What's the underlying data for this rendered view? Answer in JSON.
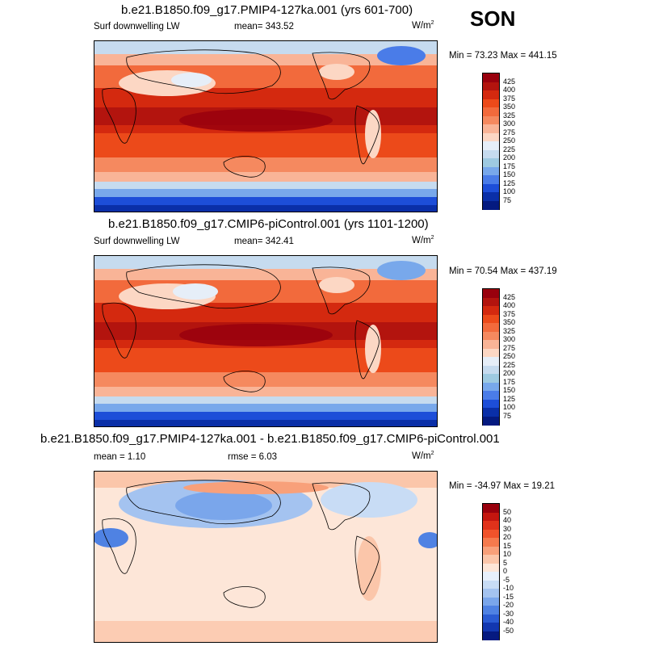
{
  "season": "SON",
  "units_base": "W/m",
  "units_exp": "2",
  "panels": [
    {
      "title": "b.e21.B1850.f09_g17.PMIP4-127ka.001 (yrs 601-700)",
      "variable": "Surf downwelling LW",
      "stat": "mean= 343.52",
      "minmax": "Min =  73.23 Max = 441.15",
      "legend": {
        "colorbar": "absolute",
        "levels": [
          "425",
          "400",
          "375",
          "350",
          "325",
          "300",
          "275",
          "250",
          "225",
          "200",
          "175",
          "150",
          "125",
          "100",
          "75"
        ],
        "colors": [
          "#99000d",
          "#b3140e",
          "#d4290f",
          "#ec4a1a",
          "#f26a3c",
          "#f5895f",
          "#f9b497",
          "#fcd7c4",
          "#e6eef8",
          "#c6dbef",
          "#9ecae1",
          "#78a8eb",
          "#4a7ce8",
          "#1d4ed8",
          "#0a2fa8",
          "#041a80"
        ]
      }
    },
    {
      "title": "b.e21.B1850.f09_g17.CMIP6-piControl.001 (yrs 1101-1200)",
      "variable": "Surf downwelling LW",
      "stat": "mean= 342.41",
      "minmax": "Min =  70.54 Max = 437.19",
      "legend": {
        "colorbar": "absolute",
        "levels": [
          "425",
          "400",
          "375",
          "350",
          "325",
          "300",
          "275",
          "250",
          "225",
          "200",
          "175",
          "150",
          "125",
          "100",
          "75"
        ],
        "colors": [
          "#99000d",
          "#b3140e",
          "#d4290f",
          "#ec4a1a",
          "#f26a3c",
          "#f5895f",
          "#f9b497",
          "#fcd7c4",
          "#e6eef8",
          "#c6dbef",
          "#9ecae1",
          "#78a8eb",
          "#4a7ce8",
          "#1d4ed8",
          "#0a2fa8",
          "#041a80"
        ]
      }
    },
    {
      "title": "b.e21.B1850.f09_g17.PMIP4-127ka.001 - b.e21.B1850.f09_g17.CMIP6-piControl.001",
      "stat_left": "mean =   1.10",
      "stat": "rmse =   6.03",
      "minmax": "Min = -34.97 Max =  19.21",
      "legend": {
        "colorbar": "difference",
        "levels": [
          "50",
          "40",
          "30",
          "20",
          "15",
          "10",
          "5",
          "0",
          "-5",
          "-10",
          "-15",
          "-20",
          "-30",
          "-40",
          "-50"
        ],
        "colors": [
          "#99000d",
          "#c4160f",
          "#e0321b",
          "#f0532b",
          "#f57a4d",
          "#f8a07a",
          "#fbc6aa",
          "#fde6d8",
          "#e8f0fb",
          "#c8dcf5",
          "#a4c3f0",
          "#7aa6eb",
          "#4f82e3",
          "#2a5bd3",
          "#1237b0",
          "#061a80"
        ]
      }
    }
  ]
}
